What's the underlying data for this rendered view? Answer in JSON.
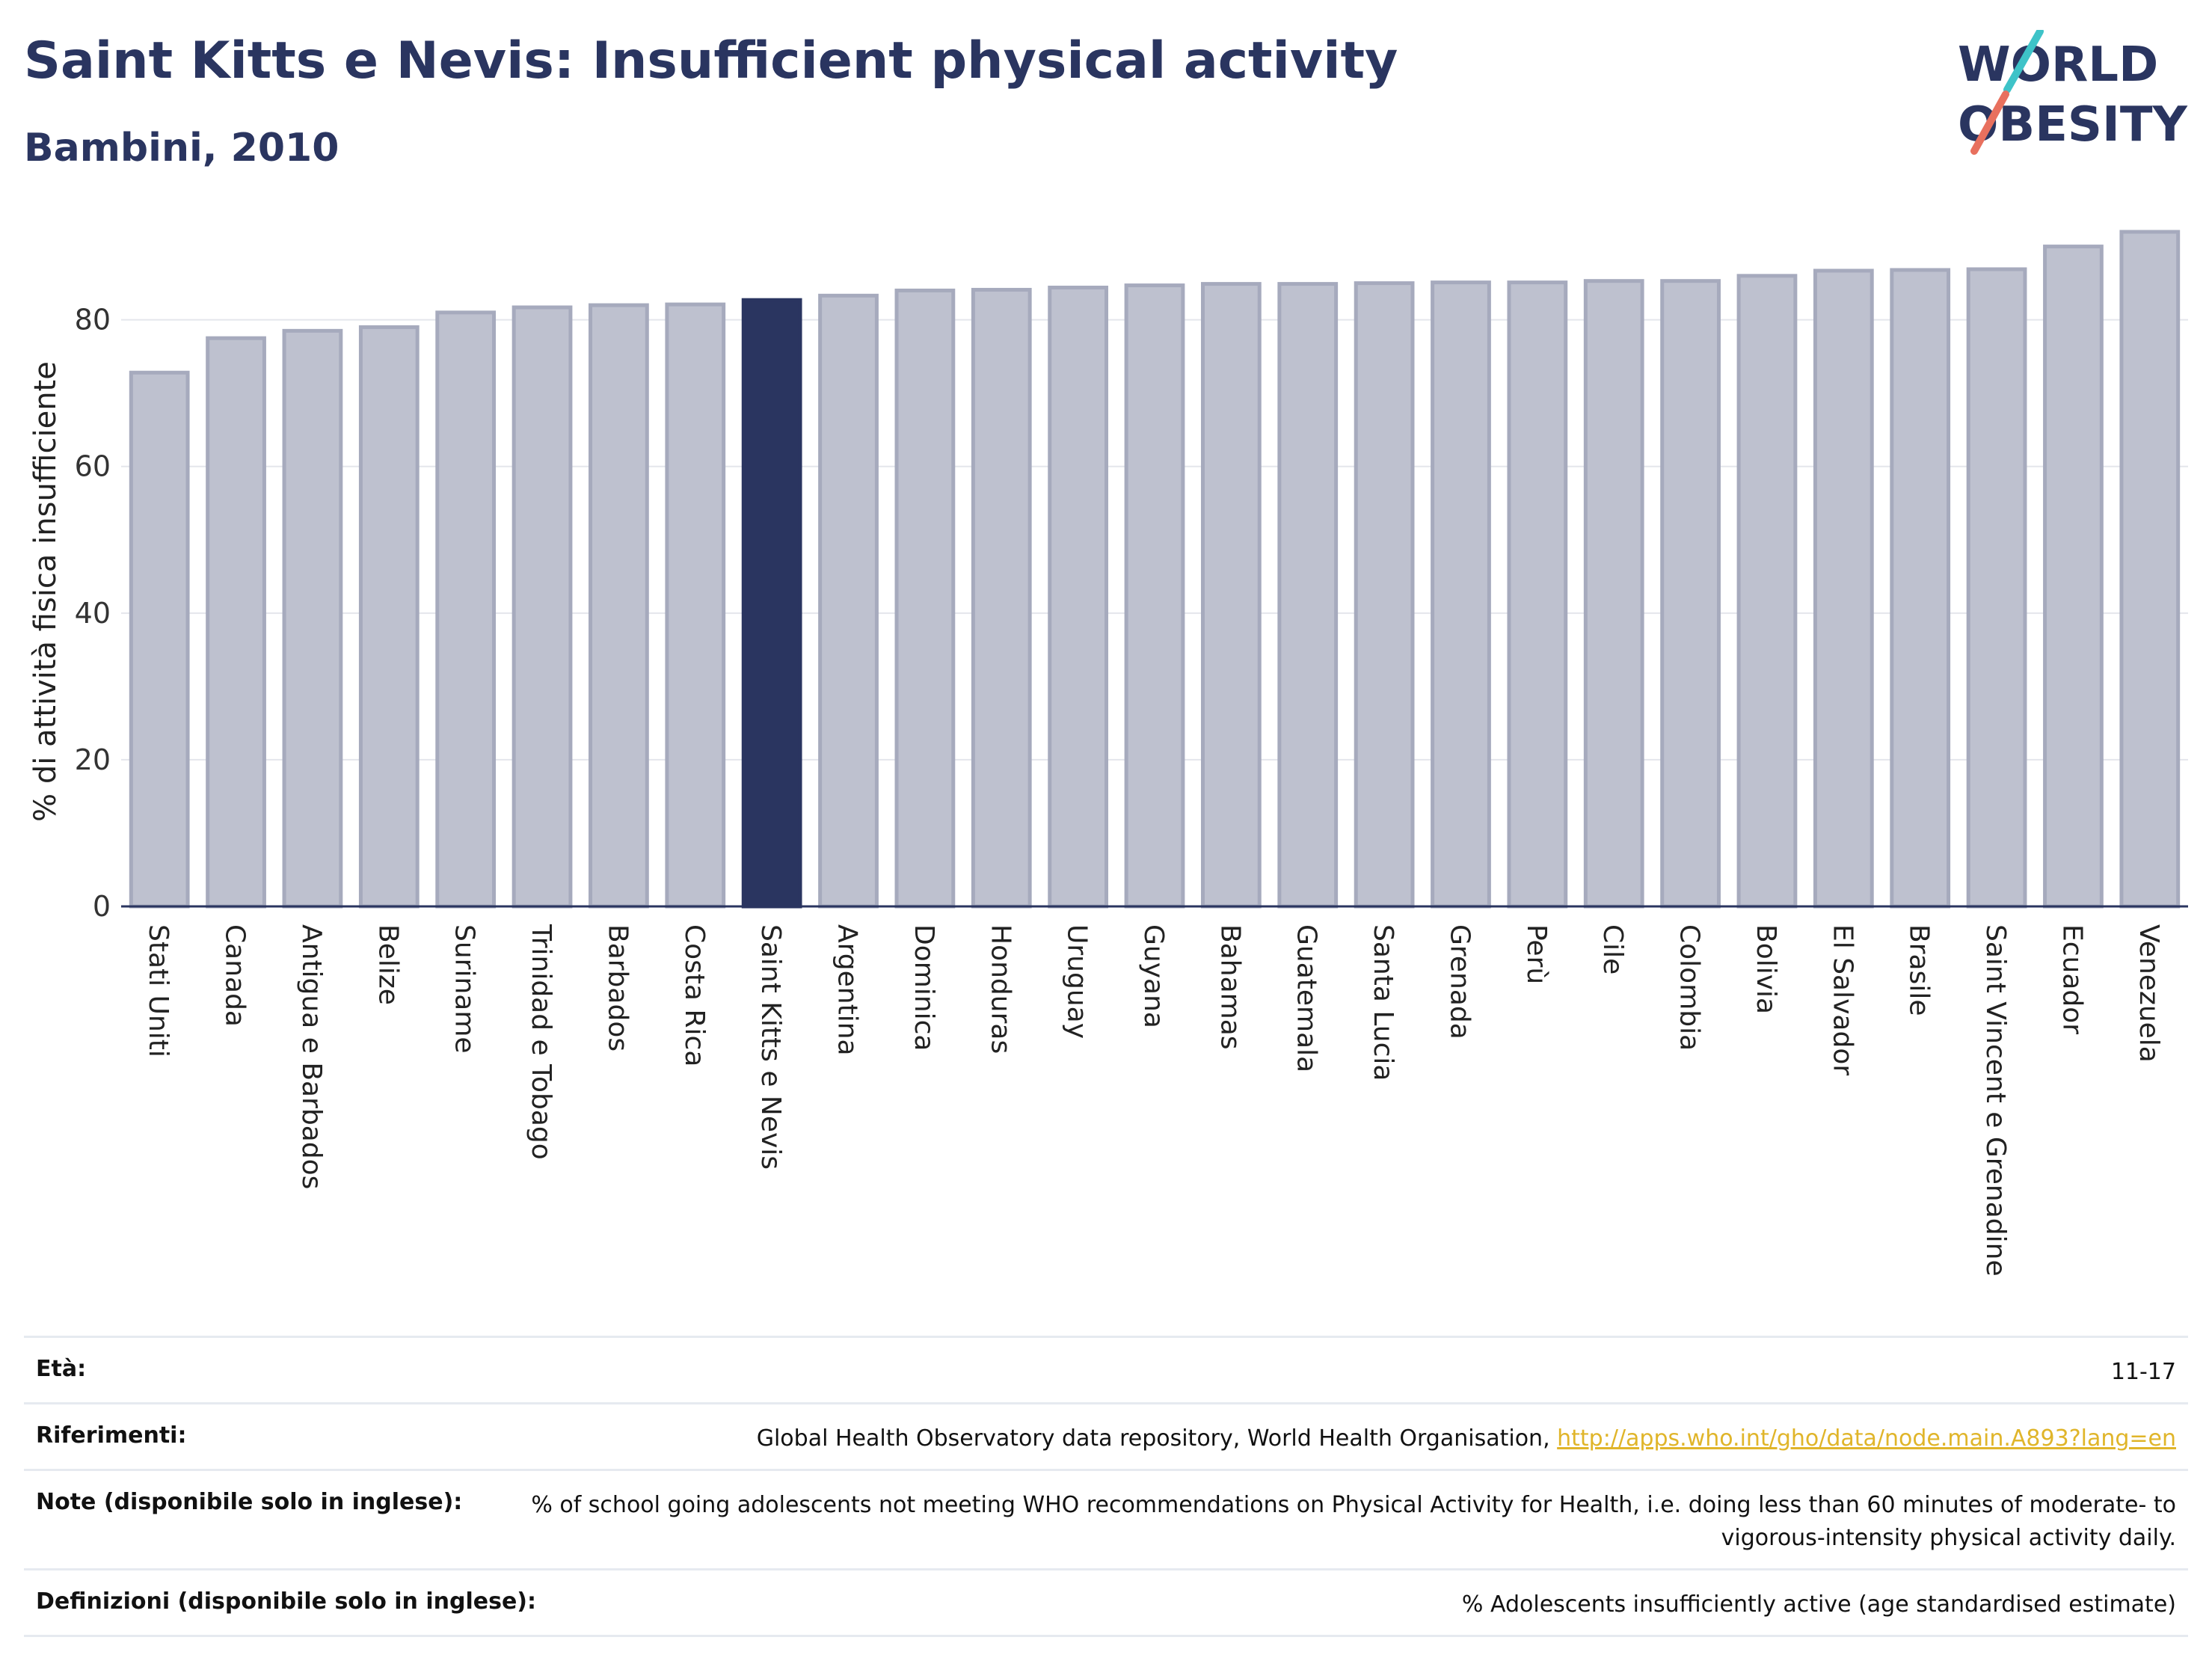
{
  "header": {
    "title": "Saint Kitts e Nevis: Insufficient physical activity",
    "subtitle": "Bambini, 2010"
  },
  "logo": {
    "line1": "WORLD",
    "line2": "OBESITY"
  },
  "colors": {
    "highlight": "#2a3560",
    "bar": "#bec1cf",
    "bar_stroke": "#a6aabd",
    "grid": "#e4e6ec",
    "axis": "#2a3560",
    "logo_teal": "#3ec3c8",
    "logo_coral": "#e8705e",
    "link": "#e0b52a"
  },
  "chart_data": {
    "type": "bar",
    "ylabel": "% di attività fisica insufficiente",
    "ylim": [
      0,
      92
    ],
    "yticks": [
      0,
      20,
      40,
      60,
      80
    ],
    "grid": true,
    "highlight": "Saint Kitts e Nevis",
    "categories": [
      "Stati Uniti",
      "Canada",
      "Antigua e Barbados",
      "Belize",
      "Suriname",
      "Trinidad e Tobago",
      "Barbados",
      "Costa Rica",
      "Saint Kitts e Nevis",
      "Argentina",
      "Dominica",
      "Honduras",
      "Uruguay",
      "Guyana",
      "Bahamas",
      "Guatemala",
      "Santa Lucia",
      "Grenada",
      "Perù",
      "Cile",
      "Colombia",
      "Bolivia",
      "El Salvador",
      "Brasile",
      "Saint Vincent e Grenadine",
      "Ecuador",
      "Venezuela"
    ],
    "values": [
      72.8,
      77.5,
      78.5,
      79.0,
      81.0,
      81.7,
      82.0,
      82.1,
      82.7,
      83.3,
      84.0,
      84.1,
      84.4,
      84.7,
      84.9,
      84.9,
      85.0,
      85.1,
      85.1,
      85.3,
      85.3,
      86.0,
      86.7,
      86.8,
      86.9,
      90.0,
      92.0
    ]
  },
  "meta": {
    "rows": [
      {
        "key": "Età:",
        "value": "11-17"
      },
      {
        "key": "Riferimenti:",
        "value": "Global Health Observatory data repository, World Health Organisation, ",
        "link": "http://apps.who.int/gho/data/node.main.A893?lang=en"
      },
      {
        "key": "Note (disponibile solo in inglese):",
        "value": "% of school going adolescents not meeting WHO recommendations on Physical Activity for Health, i.e. doing less than 60 minutes of moderate- to vigorous-intensity physical activity daily."
      },
      {
        "key": "Definizioni (disponibile solo in inglese):",
        "value": "% Adolescents insufficiently active (age standardised estimate)"
      }
    ]
  }
}
